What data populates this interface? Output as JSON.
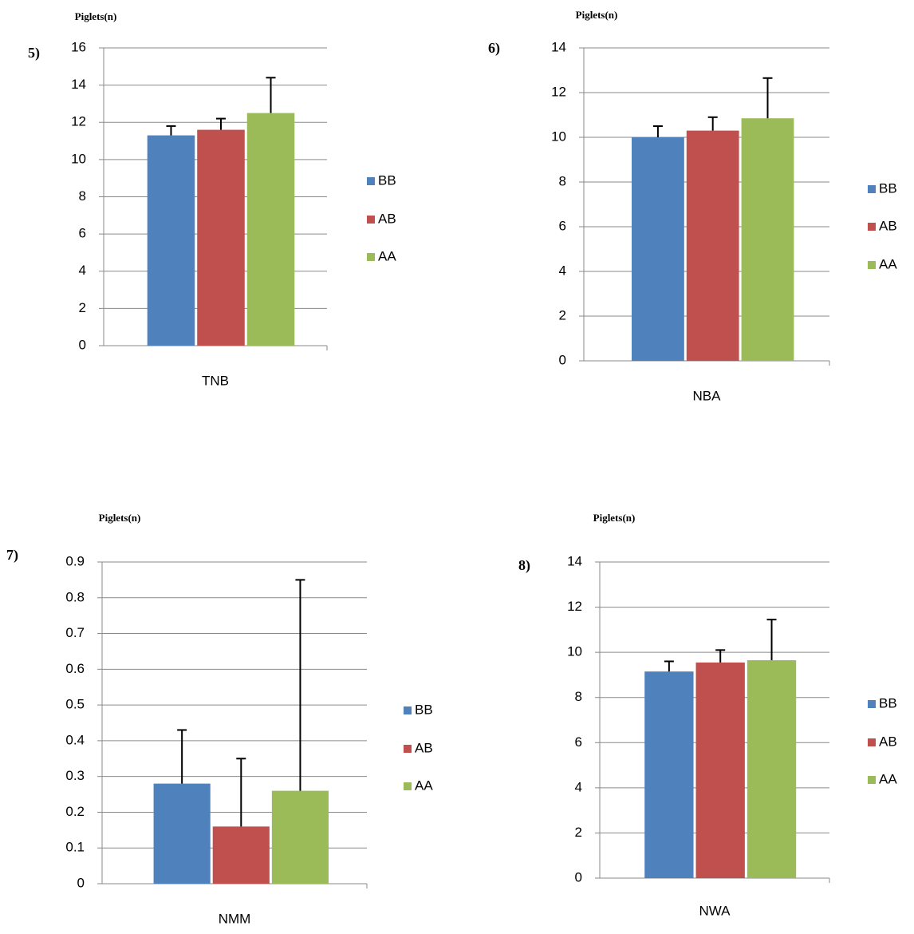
{
  "chart_data": [
    {
      "type": "bar",
      "panel_label": "5)",
      "y_label": "Piglets(n)",
      "categories": [
        "TNB"
      ],
      "series": [
        {
          "name": "BB",
          "color": "#4f81bd",
          "values": [
            11.3
          ],
          "errors": [
            0.5
          ]
        },
        {
          "name": "AB",
          "color": "#c0504d",
          "values": [
            11.6
          ],
          "errors": [
            0.6
          ]
        },
        {
          "name": "AA",
          "color": "#9bbb59",
          "values": [
            12.5
          ],
          "errors": [
            1.9
          ]
        }
      ],
      "ylim": [
        0,
        16
      ],
      "yticks": [
        0,
        2,
        4,
        6,
        8,
        10,
        12,
        14,
        16
      ],
      "grid": true,
      "legend": "right"
    },
    {
      "type": "bar",
      "panel_label": "6)",
      "y_label": "Piglets(n)",
      "categories": [
        "NBA"
      ],
      "series": [
        {
          "name": "BB",
          "color": "#4f81bd",
          "values": [
            10.0
          ],
          "errors": [
            0.5
          ]
        },
        {
          "name": "AB",
          "color": "#c0504d",
          "values": [
            10.3
          ],
          "errors": [
            0.6
          ]
        },
        {
          "name": "AA",
          "color": "#9bbb59",
          "values": [
            10.85
          ],
          "errors": [
            1.8
          ]
        }
      ],
      "ylim": [
        0,
        14
      ],
      "yticks": [
        0,
        2,
        4,
        6,
        8,
        10,
        12,
        14
      ],
      "grid": true,
      "legend": "right"
    },
    {
      "type": "bar",
      "panel_label": "7)",
      "y_label": "Piglets(n)",
      "categories": [
        "NMM"
      ],
      "series": [
        {
          "name": "BB",
          "color": "#4f81bd",
          "values": [
            0.28
          ],
          "errors": [
            0.15
          ]
        },
        {
          "name": "AB",
          "color": "#c0504d",
          "values": [
            0.16
          ],
          "errors": [
            0.19
          ]
        },
        {
          "name": "AA",
          "color": "#9bbb59",
          "values": [
            0.26
          ],
          "errors": [
            0.59
          ]
        }
      ],
      "ylim": [
        0,
        0.9
      ],
      "yticks": [
        0,
        0.1,
        0.2,
        0.3,
        0.4,
        0.5,
        0.6,
        0.7,
        0.8,
        0.9
      ],
      "grid": true,
      "legend": "right"
    },
    {
      "type": "bar",
      "panel_label": "8)",
      "y_label": "Piglets(n)",
      "categories": [
        "NWA"
      ],
      "series": [
        {
          "name": "BB",
          "color": "#4f81bd",
          "values": [
            9.15
          ],
          "errors": [
            0.45
          ]
        },
        {
          "name": "AB",
          "color": "#c0504d",
          "values": [
            9.55
          ],
          "errors": [
            0.55
          ]
        },
        {
          "name": "AA",
          "color": "#9bbb59",
          "values": [
            9.65
          ],
          "errors": [
            1.8
          ]
        }
      ],
      "ylim": [
        0,
        14
      ],
      "yticks": [
        0,
        2,
        4,
        6,
        8,
        10,
        12,
        14
      ],
      "grid": true,
      "legend": "right"
    }
  ]
}
